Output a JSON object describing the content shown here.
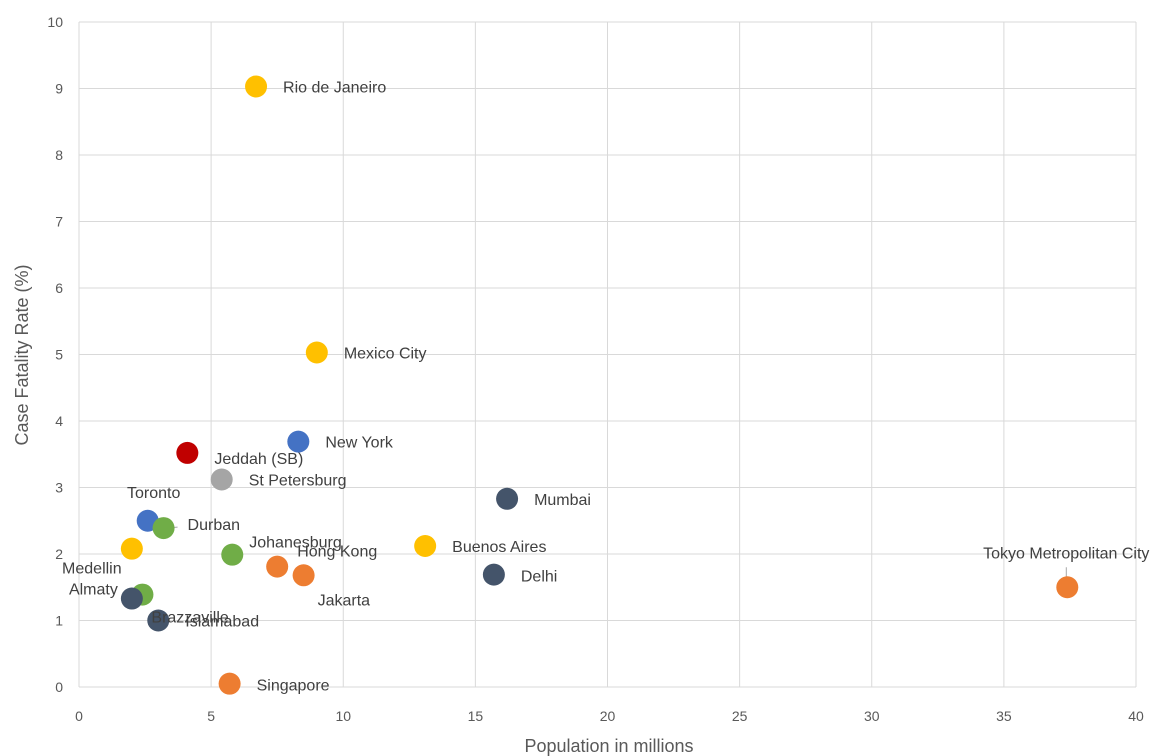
{
  "chart_data": {
    "type": "scatter",
    "title": "",
    "xlabel": "Population in millions",
    "ylabel": "Case Fatality Rate (%)",
    "xlim": [
      0,
      40
    ],
    "ylim": [
      0,
      10
    ],
    "x_ticks": [
      "0",
      "5",
      "10",
      "15",
      "20",
      "25",
      "30",
      "35",
      "40"
    ],
    "y_ticks": [
      "0",
      "1",
      "2",
      "3",
      "4",
      "5",
      "6",
      "7",
      "8",
      "9",
      "10"
    ],
    "grid": true,
    "legend": "none",
    "points": [
      {
        "label": "Rio de Janeiro",
        "x": 6.7,
        "y": 9.03,
        "color": "#FFC000"
      },
      {
        "label": "Mexico City",
        "x": 9.0,
        "y": 5.03,
        "color": "#FFC000"
      },
      {
        "label": "New York",
        "x": 8.3,
        "y": 3.69,
        "color": "#4472C4"
      },
      {
        "label": "Jeddah (SB)",
        "x": 4.1,
        "y": 3.52,
        "color": "#C00000"
      },
      {
        "label": "St Petersburg",
        "x": 5.4,
        "y": 3.12,
        "color": "#A5A5A5"
      },
      {
        "label": "Mumbai",
        "x": 16.2,
        "y": 2.83,
        "color": "#44546A"
      },
      {
        "label": "Toronto",
        "x": 2.6,
        "y": 2.5,
        "color": "#4472C4"
      },
      {
        "label": "Durban",
        "x": 3.2,
        "y": 2.39,
        "color": "#70AD47"
      },
      {
        "label": "Buenos Aires",
        "x": 13.1,
        "y": 2.12,
        "color": "#FFC000"
      },
      {
        "label": "Medellin",
        "x": 2.0,
        "y": 2.08,
        "color": "#FFC000"
      },
      {
        "label": "Johanesburg",
        "x": 5.8,
        "y": 1.99,
        "color": "#70AD47"
      },
      {
        "label": "Hong Kong",
        "x": 7.5,
        "y": 1.81,
        "color": "#ED7D31"
      },
      {
        "label": "Jakarta",
        "x": 8.5,
        "y": 1.68,
        "color": "#ED7D31"
      },
      {
        "label": "Delhi",
        "x": 15.7,
        "y": 1.69,
        "color": "#44546A"
      },
      {
        "label": "Tokyo Metropolitan City",
        "x": 37.4,
        "y": 1.5,
        "color": "#ED7D31"
      },
      {
        "label": "Brazzaville",
        "x": 2.4,
        "y": 1.39,
        "color": "#70AD47"
      },
      {
        "label": "Almaty",
        "x": 2.0,
        "y": 1.33,
        "color": "#44546A"
      },
      {
        "label": "Islamabad",
        "x": 3.0,
        "y": 1.0,
        "color": "#44546A"
      },
      {
        "label": "Singapore",
        "x": 5.7,
        "y": 0.05,
        "color": "#ED7D31"
      }
    ]
  }
}
